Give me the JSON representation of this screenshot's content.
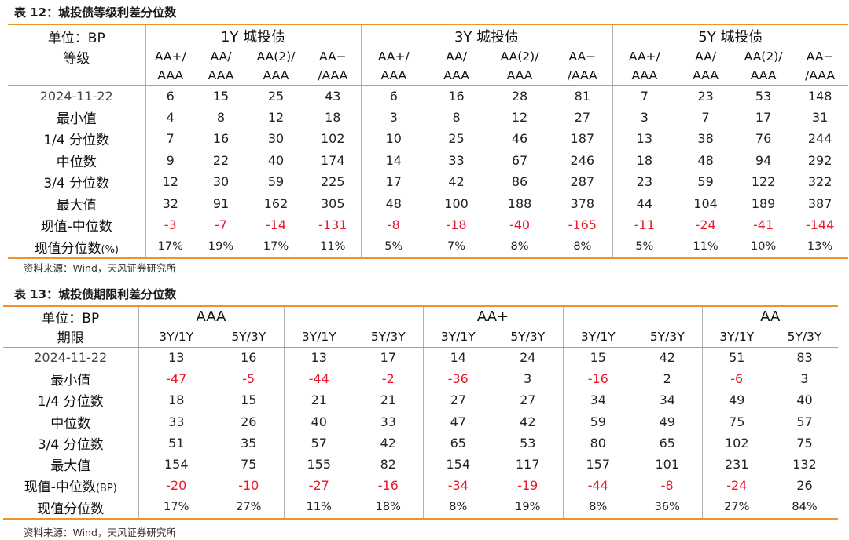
{
  "table12": {
    "title": "表 12：城投债等级利差分位数",
    "unit_label": "单位：BP",
    "grade_label": "等级",
    "groups": [
      "1Y 城投债",
      "3Y 城投债",
      "5Y 城投债"
    ],
    "columns": [
      [
        "AA+/",
        "AAA"
      ],
      [
        "AA/",
        "AAA"
      ],
      [
        "AA(2)/",
        "AAA"
      ],
      [
        "AA−",
        "/AAA"
      ],
      [
        "AA+/",
        "AAA"
      ],
      [
        "AA/",
        "AAA"
      ],
      [
        "AA(2)/",
        "AAA"
      ],
      [
        "AA−",
        "/AAA"
      ],
      [
        "AA+/",
        "AAA"
      ],
      [
        "AA/",
        "AAA"
      ],
      [
        "AA(2)/",
        "AAA"
      ],
      [
        "AA−",
        "/AAA"
      ]
    ],
    "rows": [
      {
        "label": "2024-11-22",
        "values": [
          "6",
          "15",
          "25",
          "43",
          "6",
          "16",
          "28",
          "81",
          "7",
          "23",
          "53",
          "148"
        ]
      },
      {
        "label": "最小值",
        "values": [
          "4",
          "8",
          "12",
          "18",
          "3",
          "8",
          "12",
          "27",
          "3",
          "7",
          "17",
          "31"
        ]
      },
      {
        "label": "1/4 分位数",
        "values": [
          "7",
          "16",
          "30",
          "102",
          "10",
          "25",
          "46",
          "187",
          "13",
          "38",
          "76",
          "244"
        ]
      },
      {
        "label": "中位数",
        "values": [
          "9",
          "22",
          "40",
          "174",
          "14",
          "33",
          "67",
          "246",
          "18",
          "48",
          "94",
          "292"
        ]
      },
      {
        "label": "3/4 分位数",
        "values": [
          "12",
          "30",
          "59",
          "225",
          "17",
          "42",
          "86",
          "287",
          "23",
          "59",
          "122",
          "322"
        ]
      },
      {
        "label": "最大值",
        "values": [
          "32",
          "91",
          "162",
          "305",
          "48",
          "100",
          "188",
          "378",
          "44",
          "104",
          "189",
          "387"
        ]
      },
      {
        "label": "现值-中位数",
        "values": [
          "-3",
          "-7",
          "-14",
          "-131",
          "-8",
          "-18",
          "-40",
          "-165",
          "-11",
          "-24",
          "-41",
          "-144"
        ]
      },
      {
        "label": "现值分位数",
        "label_suffix": "(%)",
        "values": [
          "17%",
          "19%",
          "17%",
          "11%",
          "5%",
          "7%",
          "8%",
          "8%",
          "5%",
          "11%",
          "10%",
          "13%"
        ]
      }
    ],
    "source": "资料来源：Wind，天风证券研究所"
  },
  "table13": {
    "title": "表 13：城投债期限利差分位数",
    "unit_label": "单位：BP",
    "term_label": "期限",
    "groups": [
      "AAA",
      "",
      "AA+",
      "",
      "AA"
    ],
    "columns": [
      "3Y/1Y",
      "5Y/3Y",
      "3Y/1Y",
      "5Y/3Y",
      "3Y/1Y",
      "5Y/3Y",
      "3Y/1Y",
      "5Y/3Y",
      "3Y/1Y",
      "5Y/3Y"
    ],
    "rows": [
      {
        "label": "2024-11-22",
        "values": [
          "13",
          "16",
          "13",
          "17",
          "14",
          "24",
          "15",
          "42",
          "51",
          "83"
        ]
      },
      {
        "label": "最小值",
        "values": [
          "-47",
          "-5",
          "-44",
          "-2",
          "-36",
          "3",
          "-16",
          "2",
          "-6",
          "3"
        ]
      },
      {
        "label": "1/4 分位数",
        "values": [
          "18",
          "15",
          "21",
          "21",
          "27",
          "27",
          "34",
          "34",
          "49",
          "40"
        ]
      },
      {
        "label": "中位数",
        "values": [
          "33",
          "26",
          "40",
          "33",
          "47",
          "42",
          "59",
          "49",
          "75",
          "57"
        ]
      },
      {
        "label": "3/4 分位数",
        "values": [
          "51",
          "35",
          "57",
          "42",
          "65",
          "53",
          "80",
          "65",
          "102",
          "75"
        ]
      },
      {
        "label": "最大值",
        "values": [
          "154",
          "75",
          "155",
          "82",
          "154",
          "117",
          "157",
          "101",
          "231",
          "132"
        ]
      },
      {
        "label": "现值-中位数",
        "label_suffix": "(BP)",
        "values": [
          "-20",
          "-10",
          "-27",
          "-16",
          "-34",
          "-19",
          "-44",
          "-8",
          "-24",
          "26"
        ]
      },
      {
        "label": "现值分位数",
        "values": [
          "17%",
          "27%",
          "11%",
          "18%",
          "8%",
          "19%",
          "8%",
          "36%",
          "27%",
          "84%"
        ]
      }
    ],
    "source": "资料来源：Wind，天风证券研究所"
  },
  "colors": {
    "accent_orange": "#f0922b",
    "negative_red": "#e8192c",
    "divider_grey": "#b0b0b0"
  }
}
